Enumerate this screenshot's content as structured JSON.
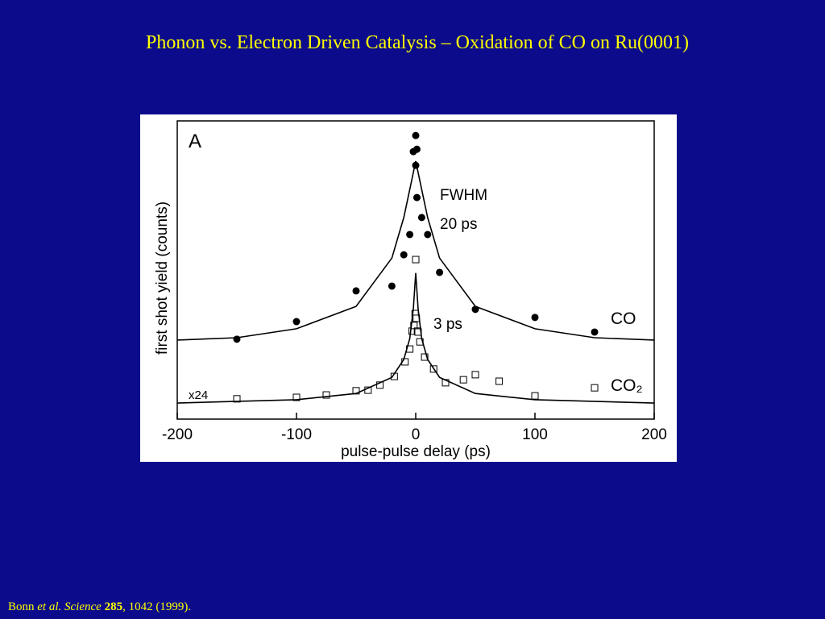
{
  "slide_title": "Phonon vs. Electron Driven Catalysis – Oxidation of CO on Ru(0001)",
  "citation": {
    "author": "Bonn",
    "etal": "et al.",
    "journal": "Science",
    "volume": "285",
    "rest": ", 1042 (1999)."
  },
  "chart_data": {
    "type": "scatter",
    "x_label": "pulse-pulse delay (ps)",
    "y_label": "first shot yield  (counts)",
    "xlim": [
      -200,
      200
    ],
    "xticks": [
      -200,
      -100,
      0,
      100,
      200
    ],
    "ylim": [
      0,
      100
    ],
    "annotations": {
      "panel": "A",
      "fwhm": "FWHM",
      "co_width": "20 ps",
      "co2_width": "3 ps",
      "co": "CO",
      "co2": "CO₂",
      "scale": "x24"
    },
    "series": [
      {
        "name": "CO",
        "kind": "points",
        "marker": "circle",
        "color": "#000000",
        "x": [
          -150,
          -100,
          -50,
          -20,
          -10,
          -5,
          -2,
          0,
          1,
          0,
          1,
          5,
          10,
          20,
          50,
          100,
          150
        ],
        "values": [
          26.8,
          32.7,
          43,
          44.6,
          55.1,
          61.9,
          89.7,
          95.1,
          90.5,
          85.1,
          74.3,
          67.6,
          61.9,
          49.2,
          36.8,
          34.1,
          29.2
        ]
      },
      {
        "name": "CO₂",
        "kind": "points",
        "marker": "square",
        "color": "#000000",
        "x": [
          -150,
          -100,
          -75,
          -50,
          -40,
          -30,
          -18,
          -9,
          -5,
          -3,
          -1.5,
          -0.5,
          0,
          0.5,
          1.5,
          2,
          3.5,
          7.5,
          15,
          25,
          40,
          50,
          70,
          100,
          150
        ],
        "values": [
          6.8,
          7.3,
          8.1,
          9.5,
          9.7,
          11.4,
          14.3,
          19.2,
          23.5,
          29.5,
          31.4,
          35.4,
          53.5,
          33.8,
          29.5,
          29.2,
          25.9,
          20.8,
          16.8,
          12.2,
          13.2,
          14.9,
          12.7,
          7.8,
          10.5
        ]
      },
      {
        "kind": "line",
        "color": "#000000",
        "x": [
          -200,
          -150,
          -100,
          -50,
          -20,
          -10,
          -5,
          0,
          5,
          10,
          20,
          50,
          100,
          150,
          200
        ],
        "values": [
          26.5,
          27.3,
          30.3,
          37.8,
          54,
          67.6,
          77,
          86.5,
          77,
          67.6,
          54,
          37.8,
          30.3,
          27.3,
          26.5
        ]
      },
      {
        "kind": "line",
        "color": "#000000",
        "x": [
          -200,
          -100,
          -50,
          -20,
          -10,
          -5,
          -2,
          0,
          2,
          5,
          10,
          20,
          50,
          100,
          200
        ],
        "values": [
          5.4,
          6.5,
          8.6,
          14,
          20,
          27,
          37,
          49,
          37,
          27,
          20,
          14,
          8.6,
          6.5,
          5.4
        ]
      }
    ]
  }
}
